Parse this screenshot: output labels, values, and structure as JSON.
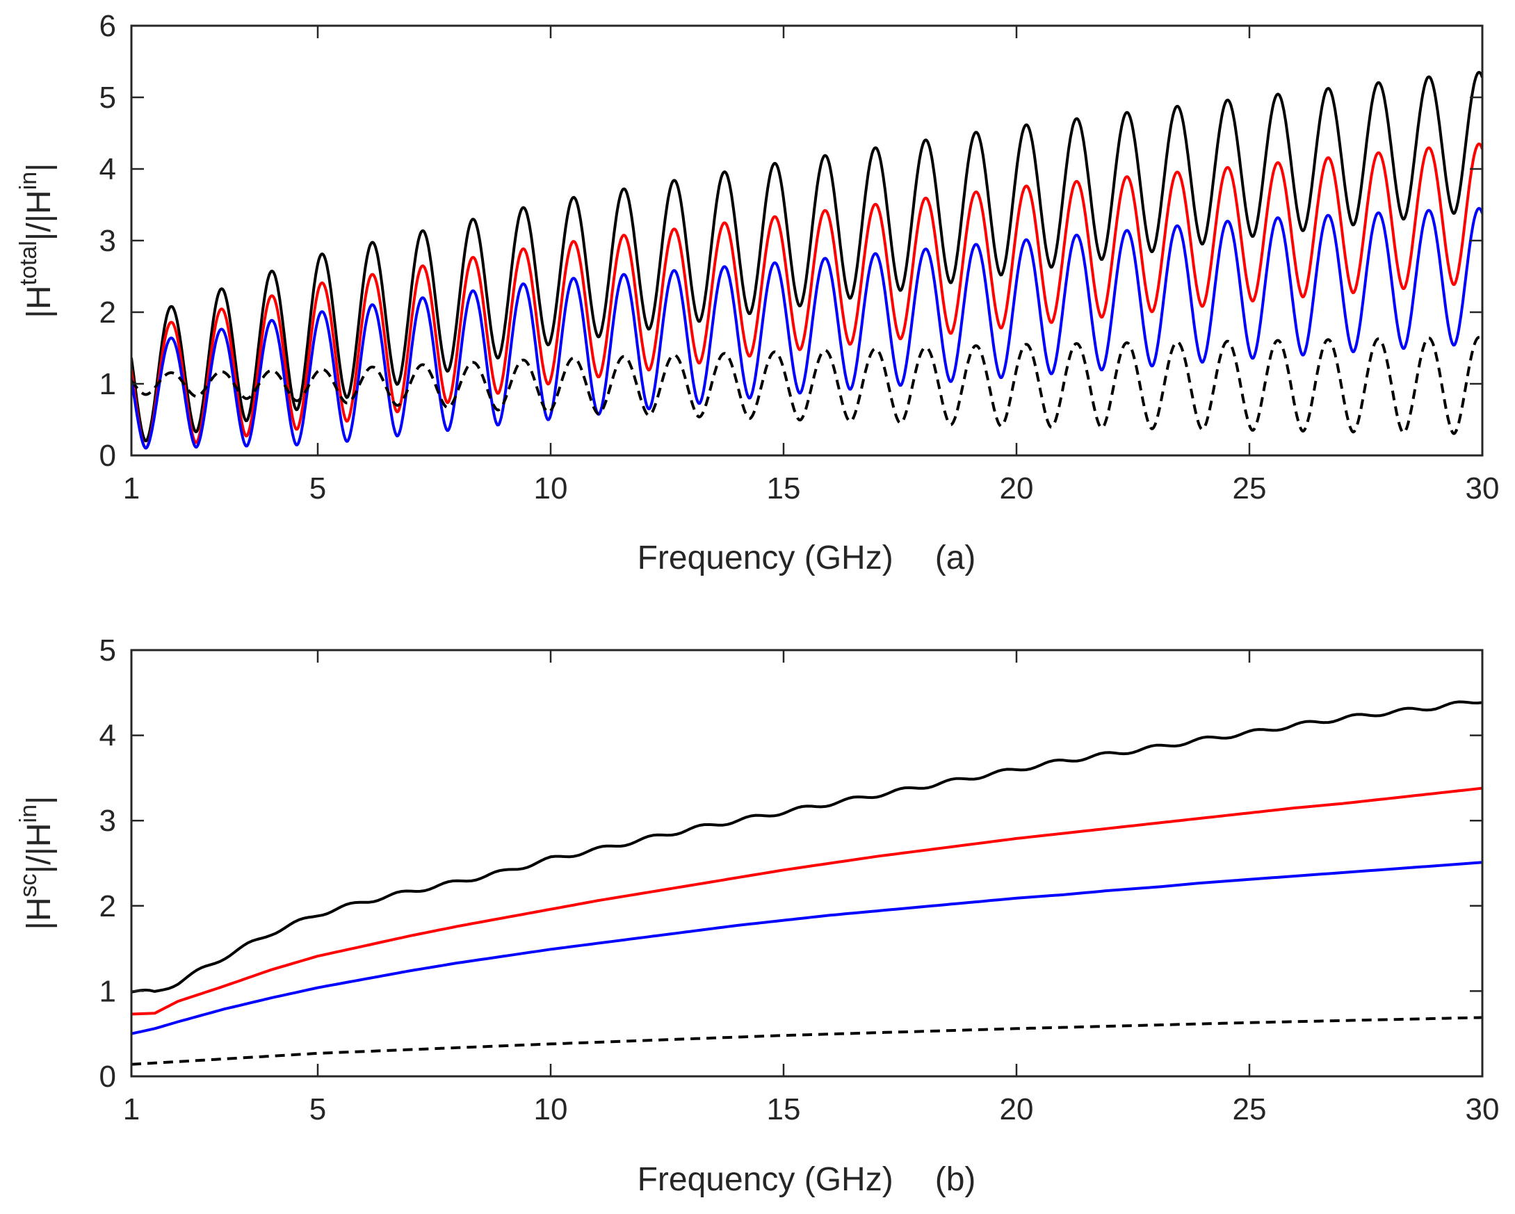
{
  "chart_data": [
    {
      "type": "line",
      "panel": "(a)",
      "xlabel": "Frequency (GHz)",
      "ylabel": {
        "base": "|H",
        "sup1": "total",
        "mid": "|/|H",
        "sup2": "in",
        "end": "|"
      },
      "xlim": [
        1,
        30
      ],
      "ylim": [
        0,
        6
      ],
      "xticks": [
        1,
        5,
        10,
        15,
        20,
        25,
        30
      ],
      "yticks": [
        0,
        1,
        2,
        3,
        4,
        5,
        6
      ],
      "grid": false,
      "oscillation_period_ghz": 1.08,
      "series": [
        {
          "name": "black-solid",
          "color": "#000000",
          "dash": "",
          "x": [
            1.5,
            5,
            10,
            15,
            20,
            25,
            29.7
          ],
          "upper_envelope": [
            2.0,
            2.8,
            3.55,
            4.1,
            4.6,
            5.0,
            5.35
          ],
          "lower_envelope": [
            0.2,
            0.7,
            1.55,
            2.05,
            2.55,
            3.05,
            3.4
          ]
        },
        {
          "name": "red-solid",
          "color": "#ff0000",
          "dash": "",
          "x": [
            1.5,
            5,
            10,
            15,
            20,
            25,
            29.7
          ],
          "upper_envelope": [
            1.8,
            2.4,
            2.95,
            3.35,
            3.75,
            4.05,
            4.35
          ],
          "lower_envelope": [
            0.1,
            0.4,
            1.0,
            1.45,
            1.8,
            2.15,
            2.4
          ]
        },
        {
          "name": "blue-solid",
          "color": "#0000ff",
          "dash": "",
          "x": [
            1.5,
            5,
            10,
            15,
            20,
            25,
            29.7
          ],
          "upper_envelope": [
            1.6,
            2.0,
            2.45,
            2.7,
            3.0,
            3.3,
            3.45
          ],
          "lower_envelope": [
            0.1,
            0.15,
            0.5,
            0.85,
            1.1,
            1.35,
            1.55
          ]
        },
        {
          "name": "black-dashed",
          "color": "#000000",
          "dash": "14,9",
          "x": [
            1.5,
            5,
            10,
            15,
            20,
            25,
            29.7
          ],
          "upper_envelope": [
            1.15,
            1.2,
            1.35,
            1.45,
            1.55,
            1.6,
            1.65
          ],
          "lower_envelope": [
            0.85,
            0.75,
            0.6,
            0.5,
            0.4,
            0.35,
            0.3
          ]
        }
      ]
    },
    {
      "type": "line",
      "panel": "(b)",
      "xlabel": "Frequency (GHz)",
      "ylabel": {
        "base": "|H",
        "sup1": "sc",
        "mid": "|/|H",
        "sup2": "in",
        "end": "|"
      },
      "xlim": [
        1,
        30
      ],
      "ylim": [
        0,
        5
      ],
      "xticks": [
        1,
        5,
        10,
        15,
        20,
        25,
        30
      ],
      "yticks": [
        0,
        1,
        2,
        3,
        4,
        5
      ],
      "grid": false,
      "series": [
        {
          "name": "black-solid",
          "color": "#000000",
          "dash": "",
          "x": [
            1,
            1.5,
            2,
            3,
            4,
            5,
            6,
            7,
            8,
            9,
            10,
            11,
            12,
            13,
            14,
            15,
            16,
            17,
            18,
            19,
            20,
            21,
            22,
            23,
            24,
            25,
            26,
            27,
            28,
            29,
            30
          ],
          "y": [
            1.0,
            0.98,
            1.1,
            1.4,
            1.68,
            1.9,
            2.05,
            2.17,
            2.28,
            2.4,
            2.55,
            2.66,
            2.78,
            2.9,
            3.0,
            3.1,
            3.2,
            3.3,
            3.4,
            3.5,
            3.6,
            3.7,
            3.78,
            3.86,
            3.95,
            4.03,
            4.12,
            4.2,
            4.27,
            4.33,
            4.41
          ]
        },
        {
          "name": "red-solid",
          "color": "#ff0000",
          "dash": "",
          "x": [
            1,
            1.5,
            2,
            3,
            4,
            5,
            6,
            7,
            8,
            9,
            10,
            11,
            12,
            13,
            14,
            15,
            16,
            17,
            18,
            19,
            20,
            21,
            22,
            23,
            24,
            25,
            26,
            27,
            28,
            29,
            30
          ],
          "y": [
            0.73,
            0.74,
            0.88,
            1.06,
            1.25,
            1.41,
            1.53,
            1.65,
            1.76,
            1.86,
            1.96,
            2.06,
            2.15,
            2.24,
            2.33,
            2.42,
            2.5,
            2.58,
            2.65,
            2.72,
            2.79,
            2.85,
            2.91,
            2.97,
            3.03,
            3.09,
            3.15,
            3.2,
            3.26,
            3.32,
            3.38
          ]
        },
        {
          "name": "blue-solid",
          "color": "#0000ff",
          "dash": "",
          "x": [
            1,
            1.5,
            2,
            3,
            4,
            5,
            6,
            7,
            8,
            9,
            10,
            11,
            12,
            13,
            14,
            15,
            16,
            17,
            18,
            19,
            20,
            21,
            22,
            23,
            24,
            25,
            26,
            27,
            28,
            29,
            30
          ],
          "y": [
            0.5,
            0.56,
            0.64,
            0.79,
            0.92,
            1.04,
            1.14,
            1.24,
            1.33,
            1.41,
            1.49,
            1.56,
            1.63,
            1.7,
            1.77,
            1.83,
            1.89,
            1.94,
            1.99,
            2.04,
            2.09,
            2.13,
            2.18,
            2.22,
            2.27,
            2.31,
            2.35,
            2.39,
            2.43,
            2.47,
            2.51
          ]
        },
        {
          "name": "black-dashed",
          "color": "#000000",
          "dash": "14,9",
          "x": [
            1,
            5,
            10,
            15,
            20,
            25,
            30
          ],
          "y": [
            0.14,
            0.27,
            0.38,
            0.48,
            0.56,
            0.63,
            0.69
          ]
        }
      ]
    }
  ]
}
